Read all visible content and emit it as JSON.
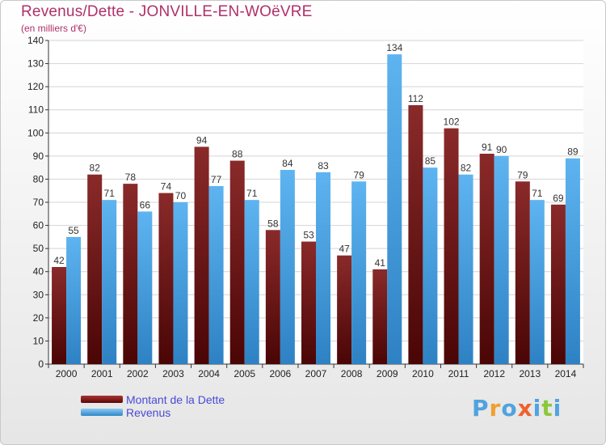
{
  "header": {
    "title": "Revenus/Dette - JONVILLE-EN-WOëVRE",
    "subtitle": "(en milliers d'€)"
  },
  "chart_data": {
    "type": "bar",
    "categories": [
      "2000",
      "2001",
      "2002",
      "2003",
      "2004",
      "2005",
      "2006",
      "2007",
      "2008",
      "2009",
      "2010",
      "2011",
      "2012",
      "2013",
      "2014"
    ],
    "series": [
      {
        "name": "Montant de la Dette",
        "color": "#7a1a1a",
        "values": [
          42,
          82,
          78,
          74,
          94,
          88,
          58,
          53,
          47,
          41,
          112,
          102,
          91,
          79,
          69
        ]
      },
      {
        "name": "Revenus",
        "color": "#4ea6e8",
        "values": [
          55,
          71,
          66,
          70,
          77,
          71,
          84,
          83,
          79,
          134,
          85,
          82,
          90,
          71,
          89
        ]
      }
    ],
    "ylim": [
      0,
      140
    ],
    "yticks": [
      0,
      10,
      20,
      30,
      40,
      50,
      60,
      70,
      80,
      90,
      100,
      110,
      120,
      130,
      140
    ],
    "grid": true,
    "legend": "bottom-left"
  },
  "logo": {
    "text": "Proxiti",
    "letter_colors": [
      "#4fa3e0",
      "#f0a030",
      "#4fa3e0",
      "#f06030",
      "#4fa3e0",
      "#8cc83c",
      "#4fa3e0"
    ]
  }
}
